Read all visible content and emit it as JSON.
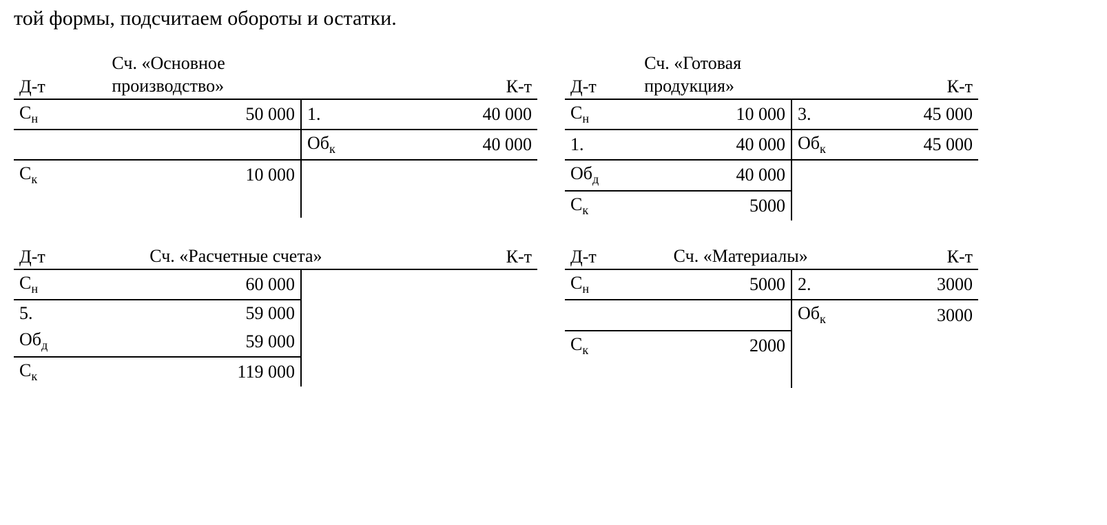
{
  "heading": "той формы, подсчитаем обороты и остатки.",
  "labels": {
    "dt": "Д-т",
    "kt": "К-т",
    "sn_pre": "С",
    "sn_sub": "н",
    "sk_pre": "С",
    "sk_sub": "к",
    "obk_pre": "Об",
    "obk_sub": "к",
    "obd_pre": "Об",
    "obd_sub": "д"
  },
  "accounts": {
    "a1": {
      "title_l1": "Сч. «Основное",
      "title_l2": "производство»",
      "d_sn": "50 000",
      "c_r1_lbl": "1.",
      "c_r1_val": "40 000",
      "c_obk": "40 000",
      "d_sk": "10 000"
    },
    "a2": {
      "title_l1": "Сч. «Готовая",
      "title_l2": "продукция»",
      "d_sn": "10 000",
      "c_r1_lbl": "3.",
      "c_r1_val": "45 000",
      "d_r2_lbl": "1.",
      "d_r2_val": "40 000",
      "c_obk": "45 000",
      "d_obd": "40 000",
      "d_sk": "5000"
    },
    "a3": {
      "title": "Сч. «Расчетные счета»",
      "d_sn": "60 000",
      "d_r2_lbl": "5.",
      "d_r2_val": "59 000",
      "d_obd": "59 000",
      "d_sk": "119 000"
    },
    "a4": {
      "title": "Сч. «Материалы»",
      "d_sn": "5000",
      "c_r1_lbl": "2.",
      "c_r1_val": "3000",
      "c_obk": "3000",
      "d_sk": "2000"
    }
  }
}
